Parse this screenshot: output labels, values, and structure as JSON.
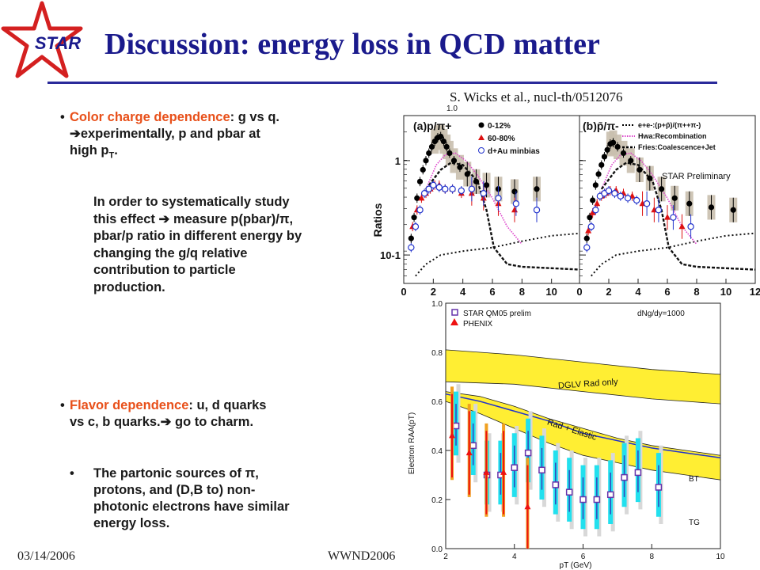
{
  "slide": {
    "title": "Discussion: energy loss in QCD  matter",
    "logo_text": "STAR",
    "citation": "S. Wicks et al., nucl-th/0512076",
    "bullets": [
      {
        "highlight": "Color charge dependence",
        "rest_line1": ": g vs q.",
        "line2": "experimentally, p and pbar at",
        "line3_pre": "high p",
        "line3_sub": "T",
        "line3_post": "."
      },
      {
        "highlight": "Flavor dependence",
        "rest_line1": ": u, d quarks",
        "line2": "vs c, b quarks.",
        "line2_post": " go to charm."
      },
      {
        "line1_pre": "The partonic sources of ",
        "line1_sym": "π",
        "line1_post": ",",
        "line2": "protons, and (D,B to) non-",
        "line3": "photonic electrons have similar",
        "line4": "energy loss."
      }
    ],
    "paragraph": {
      "line1": "In order to systematically study",
      "line2_pre": "this effect ",
      "line2_post": " measure p(pbar)/π,",
      "line3": "pbar/p ratio in different energy by",
      "line4": "changing the g/q relative",
      "line5": "contribution to particle",
      "line6": "production."
    },
    "footer_date": "03/14/2006",
    "footer_conference": "WWND2006"
  },
  "chart_data": [
    {
      "type": "scatter",
      "panel_label": "(a)p/π+",
      "ylabel": "Ratios",
      "xticks": [
        "0",
        "2",
        "4",
        "6",
        "8",
        "10"
      ],
      "yticks": [
        "1",
        "10-1"
      ],
      "ytop_label": "1.0",
      "yscale": "log",
      "xlim": [
        0,
        12
      ],
      "ylim": [
        0.05,
        3
      ],
      "legend": [
        "0-12%",
        "60-80%",
        "d+Au minbias"
      ],
      "series": [
        {
          "name": "0-12%",
          "color": "#000000",
          "marker": "circle-filled",
          "x": [
            0.5,
            0.7,
            0.9,
            1.1,
            1.3,
            1.5,
            1.7,
            1.9,
            2.1,
            2.3,
            2.5,
            2.7,
            2.9,
            3.1,
            3.4,
            3.8,
            4.3,
            4.9,
            5.6,
            6.4,
            7.5,
            9.0
          ],
          "y": [
            0.15,
            0.25,
            0.4,
            0.6,
            0.8,
            1.0,
            1.2,
            1.4,
            1.6,
            1.75,
            1.8,
            1.6,
            1.4,
            1.2,
            1.0,
            0.85,
            0.72,
            0.6,
            0.55,
            0.5,
            0.47,
            0.5
          ]
        },
        {
          "name": "60-80%",
          "color": "#dd1111",
          "marker": "triangle-filled",
          "x": [
            0.6,
            0.9,
            1.2,
            1.5,
            1.8,
            2.1,
            2.4,
            2.8,
            3.3,
            3.9,
            4.6,
            5.4,
            6.4,
            7.5
          ],
          "y": [
            0.2,
            0.3,
            0.4,
            0.45,
            0.5,
            0.55,
            0.55,
            0.5,
            0.5,
            0.45,
            0.45,
            0.4,
            0.35,
            0.3
          ]
        },
        {
          "name": "d+Au minbias",
          "color": "#2233cc",
          "marker": "circle-open",
          "x": [
            0.5,
            0.8,
            1.1,
            1.4,
            1.7,
            2.0,
            2.4,
            2.8,
            3.3,
            3.9,
            4.6,
            5.4,
            6.4,
            7.6,
            9.0
          ],
          "y": [
            0.12,
            0.2,
            0.3,
            0.45,
            0.5,
            0.55,
            0.52,
            0.5,
            0.5,
            0.48,
            0.5,
            0.45,
            0.4,
            0.35,
            0.3
          ]
        }
      ]
    },
    {
      "type": "scatter",
      "panel_label": "(b)p̄/π-",
      "annotation": "STAR Preliminary",
      "xticks": [
        "0",
        "2",
        "4",
        "6",
        "8",
        "10",
        "12"
      ],
      "yscale": "log",
      "xlim": [
        0,
        12
      ],
      "ylim": [
        0.05,
        3
      ],
      "legend": [
        "e+e-:(p+p̄)/(π++π-)",
        "Hwa:Recombination",
        "Fries:Coalescence+Jet"
      ],
      "series": [
        {
          "name": "0-12%",
          "color": "#000000",
          "marker": "circle-filled",
          "x": [
            0.5,
            0.7,
            0.9,
            1.1,
            1.3,
            1.5,
            1.7,
            1.9,
            2.1,
            2.3,
            2.6,
            3.0,
            3.5,
            4.1,
            4.8,
            5.6,
            6.5,
            7.5,
            9.0,
            10.5
          ],
          "y": [
            0.15,
            0.25,
            0.38,
            0.55,
            0.72,
            0.9,
            1.1,
            1.3,
            1.5,
            1.55,
            1.4,
            1.2,
            1.0,
            0.8,
            0.65,
            0.5,
            0.4,
            0.35,
            0.32,
            0.3
          ]
        },
        {
          "name": "60-80%",
          "color": "#dd1111",
          "marker": "triangle-filled",
          "x": [
            0.6,
            0.9,
            1.2,
            1.5,
            1.8,
            2.1,
            2.5,
            3.0,
            3.6,
            4.3,
            5.1,
            6.0,
            7.0
          ],
          "y": [
            0.18,
            0.28,
            0.35,
            0.42,
            0.45,
            0.48,
            0.48,
            0.45,
            0.42,
            0.35,
            0.3,
            0.25,
            0.2
          ]
        },
        {
          "name": "d+Au minbias",
          "color": "#2233cc",
          "marker": "circle-open",
          "x": [
            0.5,
            0.8,
            1.1,
            1.4,
            1.7,
            2.0,
            2.4,
            2.8,
            3.3,
            3.9,
            4.6,
            5.4,
            6.4,
            7.6
          ],
          "y": [
            0.12,
            0.2,
            0.3,
            0.42,
            0.45,
            0.48,
            0.45,
            0.42,
            0.4,
            0.38,
            0.35,
            0.3,
            0.25,
            0.2
          ]
        }
      ]
    },
    {
      "type": "scatter",
      "xlabel": "pT (GeV)",
      "ylabel": "Electron RAA(pT)",
      "xticks": [
        "2",
        "4",
        "6",
        "8",
        "10"
      ],
      "yticks": [
        "0.0",
        "0.2",
        "0.4",
        "0.6",
        "0.8",
        "1.0"
      ],
      "xlim": [
        2,
        10
      ],
      "ylim": [
        0,
        1
      ],
      "annotation": "dNg/dy=1000",
      "band_labels": [
        "DGLV Rad only",
        "Rad + Elastic",
        "BT",
        "TG"
      ],
      "legend": [
        "STAR QM05 prelim",
        "PHENIX"
      ],
      "series": [
        {
          "name": "STAR QM05 prelim",
          "color": "#6633aa",
          "marker": "square-open",
          "x": [
            2.3,
            2.8,
            3.2,
            3.6,
            4.0,
            4.4,
            4.8,
            5.2,
            5.6,
            6.0,
            6.4,
            6.8,
            7.2,
            7.6,
            8.2
          ],
          "y": [
            0.5,
            0.42,
            0.3,
            0.3,
            0.33,
            0.39,
            0.32,
            0.26,
            0.23,
            0.2,
            0.2,
            0.22,
            0.29,
            0.31,
            0.25
          ]
        },
        {
          "name": "PHENIX",
          "color": "#ee1111",
          "marker": "triangle-filled",
          "x": [
            2.3,
            2.8,
            3.3,
            3.8,
            4.5
          ],
          "y": [
            0.46,
            0.39,
            0.31,
            0.31,
            0.17
          ]
        }
      ]
    }
  ]
}
